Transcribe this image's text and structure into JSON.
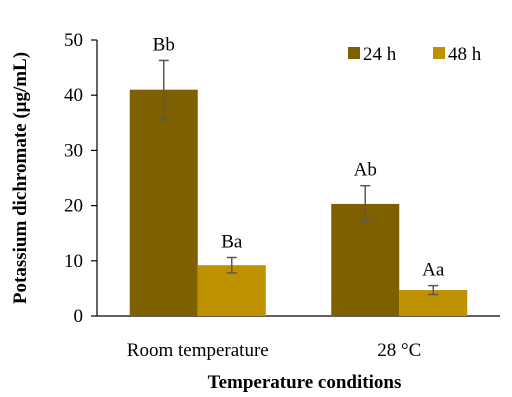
{
  "chart_data": {
    "type": "bar",
    "xlabel": "Temperature conditions",
    "ylabel": "Potassium dichromate (μg/mL)",
    "categories": [
      "Room temperature",
      "28 °C"
    ],
    "ylim": [
      0,
      50
    ],
    "yticks": [
      "0",
      "10",
      "20",
      "30",
      "40",
      "50"
    ],
    "series": [
      {
        "name": "24 h",
        "color": "#7f6000",
        "values": [
          41.0,
          20.3
        ],
        "errors": [
          5.3,
          3.3
        ],
        "labels": [
          "Bb",
          "Ab"
        ]
      },
      {
        "name": "48 h",
        "color": "#bf9000",
        "values": [
          9.2,
          4.7
        ],
        "errors": [
          1.4,
          0.8
        ],
        "labels": [
          "Ba",
          "Aa"
        ]
      }
    ],
    "legend_position": "top-right",
    "grid": false
  }
}
